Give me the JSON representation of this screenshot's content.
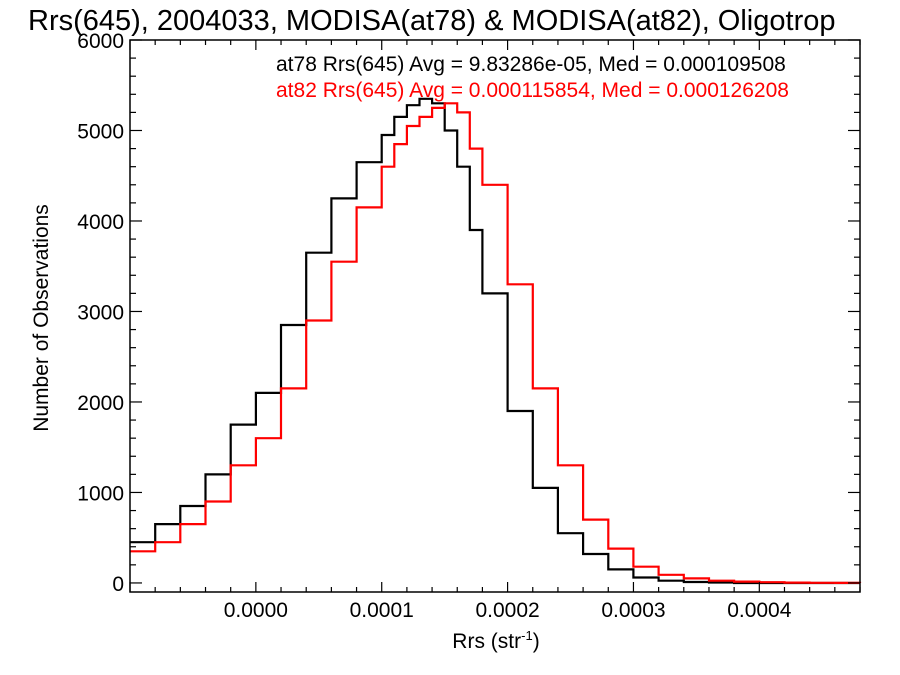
{
  "chart_data": {
    "type": "line",
    "step": true,
    "title": "Rrs(645), 2004033, MODISA(at78) & MODISA(at82), Oligotrop",
    "xlabel": "Rrs (str",
    "xlabel_sup": "-1",
    "xlabel_close": ")",
    "ylabel": "Number of Observations",
    "xlim": [
      -0.0001,
      0.00048
    ],
    "ylim": [
      -100,
      6000
    ],
    "xticks": [
      0.0,
      0.0001,
      0.0002,
      0.0003,
      0.0004
    ],
    "xtick_labels": [
      "0.0000",
      "0.0001",
      "0.0002",
      "0.0003",
      "0.0004"
    ],
    "yticks": [
      0,
      1000,
      2000,
      3000,
      4000,
      5000,
      6000
    ],
    "ytick_labels": [
      "0",
      "1000",
      "2000",
      "3000",
      "4000",
      "5000",
      "6000"
    ],
    "grid": false,
    "annotations": [
      {
        "text": "at78 Rrs(645) Avg = 9.83286e-05, Med = 0.000109508",
        "color": "#000000"
      },
      {
        "text": "at82 Rrs(645) Avg = 0.000115854, Med = 0.000126208",
        "color": "#ff0000"
      }
    ],
    "series": [
      {
        "color": "#000000",
        "x": [
          -0.0001,
          -8e-05,
          -6e-05,
          -4e-05,
          -2e-05,
          0.0,
          2e-05,
          4e-05,
          6e-05,
          8e-05,
          0.0001,
          0.00011,
          0.00012,
          0.00013,
          0.00014,
          0.00015,
          0.00016,
          0.00017,
          0.00018,
          0.0002,
          0.00022,
          0.00024,
          0.00026,
          0.00028,
          0.0003,
          0.00032,
          0.00034,
          0.00036,
          0.00038,
          0.0004,
          0.00042,
          0.00044,
          0.00046,
          0.00048
        ],
        "y": [
          450,
          650,
          850,
          1200,
          1750,
          2100,
          2850,
          3650,
          4250,
          4650,
          4950,
          5150,
          5280,
          5350,
          5300,
          5000,
          4600,
          3900,
          3200,
          1900,
          1050,
          550,
          320,
          150,
          60,
          25,
          10,
          5,
          0,
          0,
          0,
          0,
          0,
          0
        ]
      },
      {
        "color": "#ff0000",
        "x": [
          -0.0001,
          -8e-05,
          -6e-05,
          -4e-05,
          -2e-05,
          0.0,
          2e-05,
          4e-05,
          6e-05,
          8e-05,
          0.0001,
          0.00011,
          0.00012,
          0.00013,
          0.00014,
          0.00015,
          0.00016,
          0.00017,
          0.00018,
          0.0002,
          0.00022,
          0.00024,
          0.00026,
          0.00028,
          0.0003,
          0.00032,
          0.00034,
          0.00036,
          0.00038,
          0.0004,
          0.00042,
          0.00044,
          0.00046,
          0.00048
        ],
        "y": [
          350,
          450,
          650,
          900,
          1300,
          1600,
          2150,
          2900,
          3550,
          4150,
          4600,
          4850,
          5050,
          5150,
          5250,
          5300,
          5200,
          4800,
          4400,
          3300,
          2150,
          1300,
          700,
          380,
          180,
          90,
          50,
          25,
          15,
          8,
          4,
          2,
          1,
          0
        ]
      }
    ]
  }
}
